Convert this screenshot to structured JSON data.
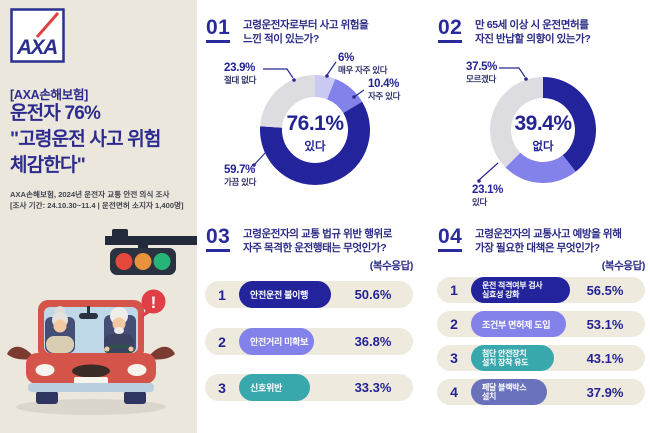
{
  "left_panel": {
    "logo": "AXA",
    "tag": "[AXA손해보험]",
    "headline_line1": "운전자 76%",
    "headline_line2": "\"고령운전 사고 위험",
    "headline_line3": "체감한다\"",
    "source": "AXA손해보험, 2024년 운전자 교통 안전 의식 조사",
    "period": "[조사 기간: 24.10.30~11.4 | 운전면허 소지자 1,400명]",
    "illustration": {
      "alert_icon": "!"
    }
  },
  "colors": {
    "navy": "#23239b",
    "purple": "#8381ea",
    "lavender": "#c9c9f4",
    "gray": "#dcdce1",
    "teal": "#38a8ad",
    "slate_blue": "#6a72bb",
    "cream": "#efeade",
    "left_panel_bg": "#ebe7dd",
    "red": "#e0413f",
    "text_navy": "#2b2b85"
  },
  "chart_data": [
    {
      "type": "pie",
      "number": "01",
      "title_line1": "고령운전자로부터 사고 위험을",
      "title_line2": "느낀 적이 있는가?",
      "center_value": "76.1%",
      "center_label": "있다",
      "segments": [
        {
          "label": "매우 자주 있다",
          "value": 6,
          "display": "6%",
          "color": "#c9c9f4"
        },
        {
          "label": "자주 있다",
          "value": 10.4,
          "display": "10.4%",
          "color": "#8381ea"
        },
        {
          "label": "가끔 있다",
          "value": 59.7,
          "display": "59.7%",
          "color": "#23239b"
        },
        {
          "label": "절대 없다",
          "value": 23.9,
          "display": "23.9%",
          "color": "#dcdce1"
        }
      ]
    },
    {
      "type": "pie",
      "number": "02",
      "title_line1": "만 65세 이상 시 운전면허를",
      "title_line2": "자진 반납할 의향이 있는가?",
      "center_value": "39.4%",
      "center_label": "없다",
      "segments": [
        {
          "label": "없다",
          "value": 39.4,
          "display": "39.4%",
          "color": "#23239b"
        },
        {
          "label": "있다",
          "value": 23.1,
          "display": "23.1%",
          "color": "#8381ea"
        },
        {
          "label": "모르겠다",
          "value": 37.5,
          "display": "37.5%",
          "color": "#dcdce1"
        }
      ]
    },
    {
      "type": "bar",
      "number": "03",
      "title_line1": "고령운전자의 교통 법규 위반 행위로",
      "title_line2": "자주 목격한 운전행태는 무엇인가?",
      "note": "(복수응답)",
      "rows": [
        {
          "rank": "1",
          "label_line1": "안전운전 불이행",
          "label_line2": "",
          "value": 50.6,
          "display": "50.6%",
          "color": "#23239b"
        },
        {
          "rank": "2",
          "label_line1": "안전거리 미확보",
          "label_line2": "",
          "value": 36.8,
          "display": "36.8%",
          "color": "#8381ea"
        },
        {
          "rank": "3",
          "label_line1": "신호위반",
          "label_line2": "",
          "value": 33.3,
          "display": "33.3%",
          "color": "#38a8ad"
        }
      ]
    },
    {
      "type": "bar",
      "number": "04",
      "title_line1": "고령운전자의 교통사고 예방을 위해",
      "title_line2": "가장 필요한 대책은 무엇인가?",
      "note": "(복수응답)",
      "rows": [
        {
          "rank": "1",
          "label_line1": "운전 적격여부 검사",
          "label_line2": "실효성 강화",
          "value": 56.5,
          "display": "56.5%",
          "color": "#23239b"
        },
        {
          "rank": "2",
          "label_line1": "조건부 면허제 도입",
          "label_line2": "",
          "value": 53.1,
          "display": "53.1%",
          "color": "#8381ea"
        },
        {
          "rank": "3",
          "label_line1": "첨단 안전장치",
          "label_line2": "설치 장착 유도",
          "value": 43.1,
          "display": "43.1%",
          "color": "#38a8ad"
        },
        {
          "rank": "4",
          "label_line1": "페달 블랙박스",
          "label_line2": "설치",
          "value": 37.9,
          "display": "37.9%",
          "color": "#6a72bb"
        }
      ]
    }
  ]
}
